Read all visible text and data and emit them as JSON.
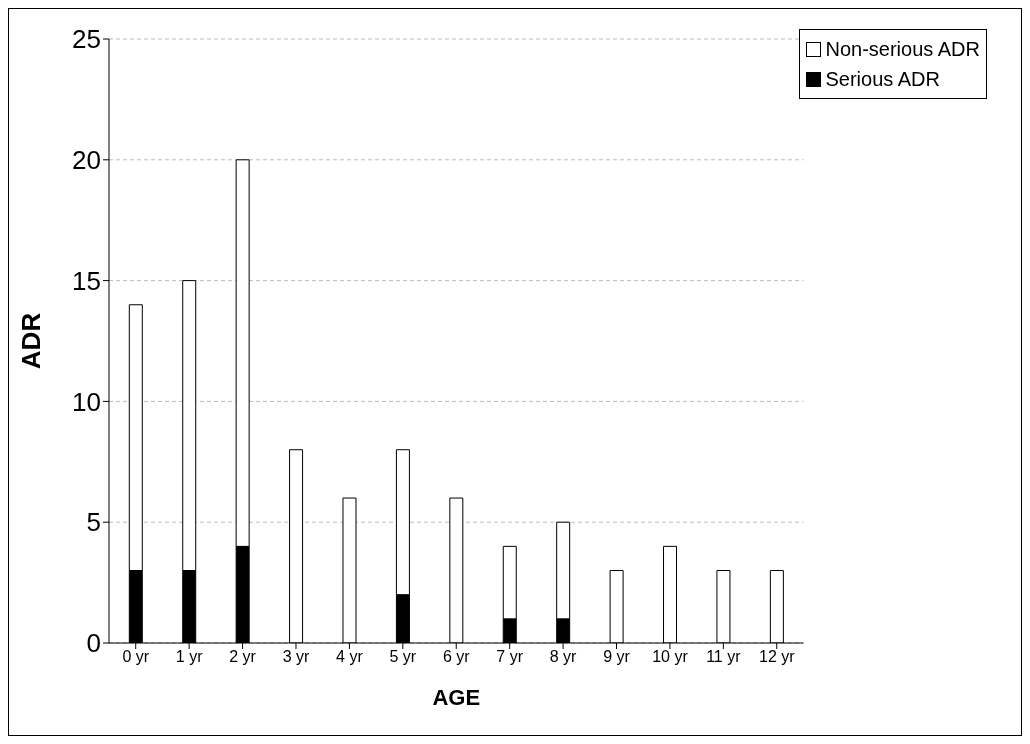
{
  "chart_data": {
    "type": "bar",
    "xlabel": "AGE",
    "ylabel": "ADR",
    "categories": [
      "0 yr",
      "1 yr",
      "2 yr",
      "3 yr",
      "4 yr",
      "5 yr",
      "6 yr",
      "7 yr",
      "8 yr",
      "9 yr",
      "10 yr",
      "11 yr",
      "12 yr"
    ],
    "series": [
      {
        "name": "Serious ADR",
        "color": "#000000",
        "values": [
          3,
          3,
          4,
          0,
          0,
          2,
          0,
          1,
          1,
          0,
          0,
          0,
          0
        ]
      },
      {
        "name": "Non-serious ADR",
        "color": "#ffffff",
        "values": [
          11,
          12,
          16,
          8,
          6,
          6,
          6,
          3,
          4,
          3,
          4,
          3,
          3
        ]
      }
    ],
    "stacked": true,
    "ylim": [
      0,
      25
    ],
    "yticks": [
      0,
      5,
      10,
      15,
      20,
      25
    ],
    "grid": "y",
    "legend": "top right"
  }
}
